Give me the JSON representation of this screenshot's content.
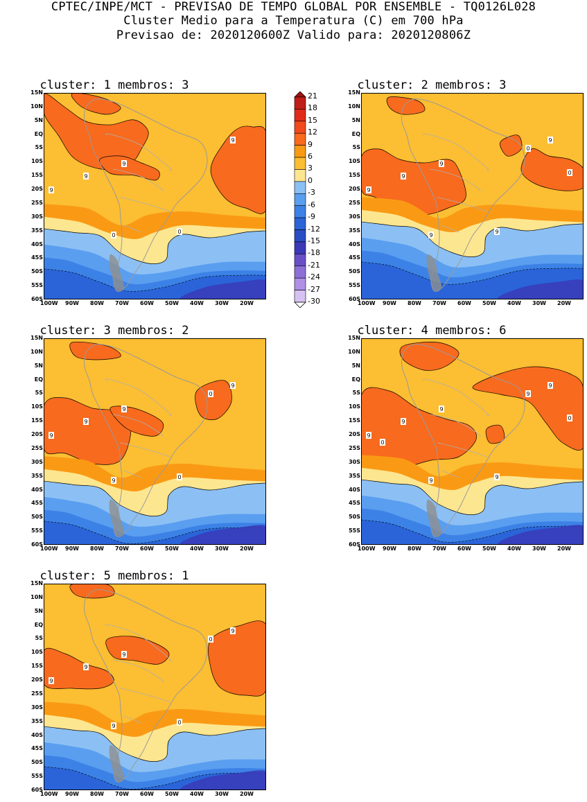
{
  "header": {
    "line1": "CPTEC/INPE/MCT - PREVISAO DE TEMPO GLOBAL POR ENSEMBLE - TQ0126L028",
    "line2": "Cluster Medio para a Temperatura (C) em 700 hPa",
    "line3": "Previsao de: 2020120600Z   Valido para: 2020120806Z"
  },
  "colorbar": {
    "labels": [
      "21",
      "18",
      "15",
      "12",
      "9",
      "6",
      "3",
      "0",
      "-3",
      "-6",
      "-9",
      "-12",
      "-15",
      "-18",
      "-21",
      "-24",
      "-27",
      "-30"
    ],
    "colors": [
      "#a01414",
      "#c01e18",
      "#e02a1a",
      "#f24a1c",
      "#f86a1e",
      "#fa9a14",
      "#fcbe32",
      "#fde690",
      "#8cc0f4",
      "#5a9ef0",
      "#3c82e6",
      "#2a64d8",
      "#2a4cc4",
      "#3a3ab8",
      "#6a50c8",
      "#8e6fd8",
      "#b090e6",
      "#d6c2f2",
      "#ffffff"
    ]
  },
  "y_ticks": [
    "15N",
    "10N",
    "5N",
    "EQ",
    "5S",
    "10S",
    "15S",
    "20S",
    "25S",
    "30S",
    "35S",
    "40S",
    "45S",
    "50S",
    "55S",
    "60S"
  ],
  "x_ticks": [
    "100W",
    "90W",
    "80W",
    "70W",
    "60W",
    "50W",
    "40W",
    "30W",
    "20W"
  ],
  "panels": [
    {
      "title": "cluster: 1   membros: 3",
      "contour_labels": [
        "9",
        "9",
        "9",
        "9",
        "0",
        "0"
      ]
    },
    {
      "title": "cluster: 2   membros: 3",
      "contour_labels": [
        "9",
        "9",
        "9",
        "9",
        "9",
        "9",
        "0",
        "0"
      ]
    },
    {
      "title": "cluster: 3   membros: 2",
      "contour_labels": [
        "9",
        "9",
        "9",
        "9",
        "9",
        "0",
        "0"
      ]
    },
    {
      "title": "cluster: 4   membros: 6",
      "contour_labels": [
        "9",
        "9",
        "9",
        "9",
        "9",
        "9",
        "9",
        "0",
        "0"
      ]
    },
    {
      "title": "cluster: 5   membros: 1",
      "contour_labels": [
        "9",
        "9",
        "9",
        "9",
        "9",
        "0",
        "0"
      ]
    }
  ]
}
